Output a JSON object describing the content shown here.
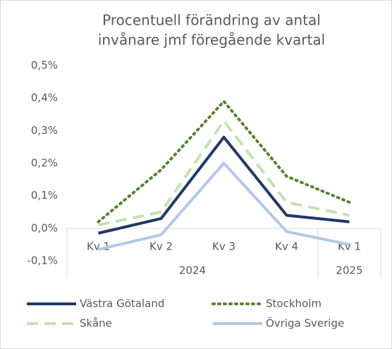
{
  "chart_data": {
    "type": "line",
    "title": [
      "Procentuell förändring av antal",
      "invånare jmf föregående kvartal"
    ],
    "categories": [
      "Kv 1",
      "Kv 2",
      "Kv 3",
      "Kv 4",
      "Kv 1"
    ],
    "groups": [
      {
        "label": "2024",
        "span": 4
      },
      {
        "label": "2025",
        "span": 1
      }
    ],
    "ylim": [
      -0.1,
      0.5
    ],
    "yticks": [
      {
        "value": -0.1,
        "label": "-0,1%"
      },
      {
        "value": 0,
        "label": "0,0%"
      },
      {
        "value": 0.1,
        "label": "0,1%"
      },
      {
        "value": 0.2,
        "label": "0,2%"
      },
      {
        "value": 0.3,
        "label": "0,3%"
      },
      {
        "value": 0.4,
        "label": "0,4%"
      },
      {
        "value": 0.5,
        "label": "0,5%"
      }
    ],
    "series": [
      {
        "name": "Västra Götaland",
        "color": "#203864",
        "dash": "solid",
        "values": [
          -0.015,
          0.03,
          0.28,
          0.04,
          0.02
        ]
      },
      {
        "name": "Stockholm",
        "color": "#548235",
        "dash": "dotted",
        "values": [
          0.02,
          0.18,
          0.39,
          0.16,
          0.08
        ]
      },
      {
        "name": "Skåne",
        "color": "#c5e0b4",
        "dash": "dashed",
        "values": [
          0.01,
          0.05,
          0.33,
          0.08,
          0.04
        ]
      },
      {
        "name": "Övriga Sverige",
        "color": "#b4c7e7",
        "dash": "solid",
        "values": [
          -0.065,
          -0.02,
          0.2,
          -0.01,
          -0.05
        ]
      }
    ]
  }
}
